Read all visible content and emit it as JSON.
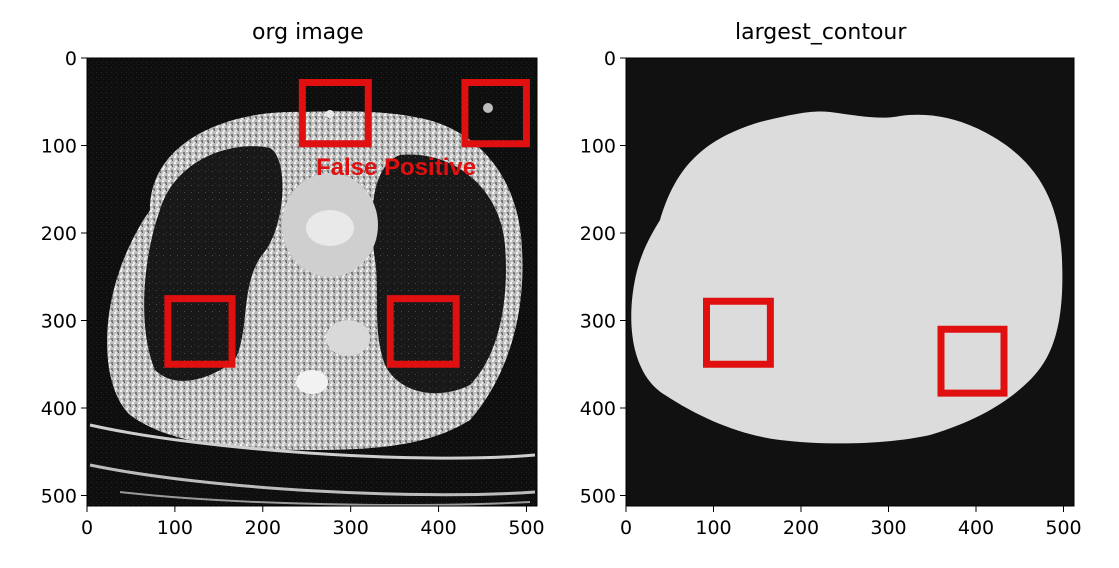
{
  "chart_data": [
    {
      "type": "image",
      "title": "org image",
      "xlim": [
        0,
        512
      ],
      "ylim": [
        512,
        0
      ],
      "xticks": [
        0,
        100,
        200,
        300,
        400,
        500
      ],
      "yticks": [
        0,
        100,
        200,
        300,
        400,
        500
      ],
      "annotation": "False Positive",
      "annotation_color": "#e01010",
      "boxes": [
        {
          "x": [
            245,
            320
          ],
          "y": [
            28,
            98
          ]
        },
        {
          "x": [
            430,
            500
          ],
          "y": [
            28,
            98
          ]
        },
        {
          "x": [
            92,
            165
          ],
          "y": [
            275,
            350
          ]
        },
        {
          "x": [
            345,
            420
          ],
          "y": [
            275,
            350
          ]
        }
      ]
    },
    {
      "type": "image",
      "title": "largest_contour",
      "xlim": [
        0,
        512
      ],
      "ylim": [
        512,
        0
      ],
      "xticks": [
        0,
        100,
        200,
        300,
        400,
        500
      ],
      "yticks": [
        0,
        100,
        200,
        300,
        400,
        500
      ],
      "boxes": [
        {
          "x": [
            92,
            165
          ],
          "y": [
            278,
            350
          ]
        },
        {
          "x": [
            360,
            432
          ],
          "y": [
            310,
            383
          ]
        }
      ]
    }
  ],
  "colors": {
    "box": "#e01010",
    "mask": "#dcdcdc",
    "background": "#111111"
  }
}
